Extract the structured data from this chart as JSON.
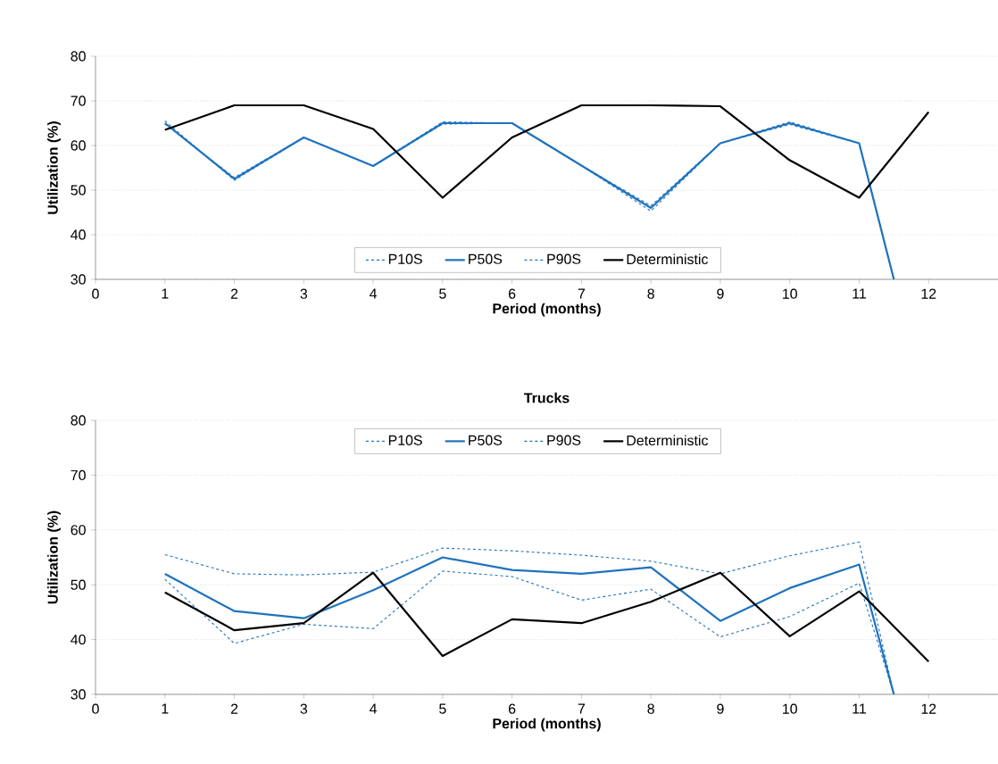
{
  "chart_data": [
    {
      "type": "line",
      "xlabel": "Period (months)",
      "ylabel": "Utilization (%)",
      "xlim": [
        0,
        13
      ],
      "ylim": [
        30,
        80
      ],
      "xticks": [
        0,
        1,
        2,
        3,
        4,
        5,
        6,
        7,
        8,
        9,
        10,
        11,
        12
      ],
      "yticks": [
        30,
        40,
        50,
        60,
        70,
        80
      ],
      "grid": "y",
      "legend": "bottom",
      "series": [
        {
          "name": "P10S",
          "color": "#1e73be",
          "line_style": "dashed",
          "x": [
            1,
            2,
            3,
            4,
            5,
            6,
            7,
            8,
            9,
            10,
            11,
            11.5
          ],
          "values": [
            65.5,
            52.2,
            61.8,
            55.4,
            65.3,
            65,
            55.5,
            45.3,
            60.5,
            65.3,
            60.5,
            30
          ]
        },
        {
          "name": "P50S",
          "color": "#1e73be",
          "line_style": "solid",
          "x": [
            1,
            2,
            3,
            4,
            5,
            6,
            7,
            8,
            9,
            10,
            11,
            11.5
          ],
          "values": [
            65,
            52.5,
            61.8,
            55.4,
            65,
            65,
            55.5,
            46,
            60.5,
            65,
            60.5,
            30
          ]
        },
        {
          "name": "P90S",
          "color": "#1e73be",
          "line_style": "dashed",
          "x": [
            1,
            2,
            3,
            4,
            5,
            6,
            7,
            8,
            9,
            10,
            11,
            11.5
          ],
          "values": [
            64.8,
            52.8,
            61.8,
            55.4,
            64.8,
            65,
            55.5,
            46.5,
            60.5,
            64.7,
            60.5,
            30
          ]
        },
        {
          "name": "Deterministic",
          "color": "#000000",
          "line_style": "solid",
          "x": [
            1,
            2,
            3,
            4,
            5,
            6,
            7,
            8,
            9,
            10,
            11,
            12
          ],
          "values": [
            63.5,
            69,
            69,
            63.7,
            48.3,
            61.8,
            69,
            69,
            68.8,
            56.7,
            48.3,
            67.5
          ]
        }
      ]
    },
    {
      "type": "line",
      "title": "Trucks",
      "xlabel": "Period (months)",
      "ylabel": "Utilization (%)",
      "xlim": [
        0,
        13
      ],
      "ylim": [
        30,
        80
      ],
      "xticks": [
        0,
        1,
        2,
        3,
        4,
        5,
        6,
        7,
        8,
        9,
        10,
        11,
        12
      ],
      "yticks": [
        30,
        40,
        50,
        60,
        70,
        80
      ],
      "grid": "y",
      "legend": "top",
      "series": [
        {
          "name": "P10S",
          "color": "#1e73be",
          "line_style": "dashed",
          "x": [
            1,
            2,
            3,
            4,
            5,
            6,
            7,
            8,
            9,
            10,
            11,
            11.5
          ],
          "values": [
            51,
            39.3,
            42.8,
            42,
            52.5,
            51.5,
            47.2,
            49.2,
            40.5,
            44.2,
            50.3,
            30
          ]
        },
        {
          "name": "P50S",
          "color": "#1e73be",
          "line_style": "solid",
          "x": [
            1,
            2,
            3,
            4,
            5,
            6,
            7,
            8,
            9,
            10,
            11,
            11.5
          ],
          "values": [
            52,
            45.2,
            43.9,
            49,
            55,
            52.7,
            52,
            53.2,
            43.4,
            49.4,
            53.7,
            30
          ]
        },
        {
          "name": "P90S",
          "color": "#1e73be",
          "line_style": "dashed",
          "x": [
            1,
            2,
            3,
            4,
            5,
            6,
            7,
            8,
            9,
            10,
            11,
            11.5
          ],
          "values": [
            55.5,
            52,
            51.8,
            52.3,
            56.7,
            56.2,
            55.4,
            54.3,
            52,
            55.3,
            57.8,
            30
          ]
        },
        {
          "name": "Deterministic",
          "color": "#000000",
          "line_style": "solid",
          "x": [
            1,
            2,
            3,
            4,
            5,
            6,
            7,
            8,
            9,
            10,
            11,
            12
          ],
          "values": [
            48.6,
            41.7,
            43,
            52.2,
            37,
            43.7,
            43,
            46.9,
            52.2,
            40.6,
            48.8,
            36
          ]
        }
      ]
    }
  ]
}
